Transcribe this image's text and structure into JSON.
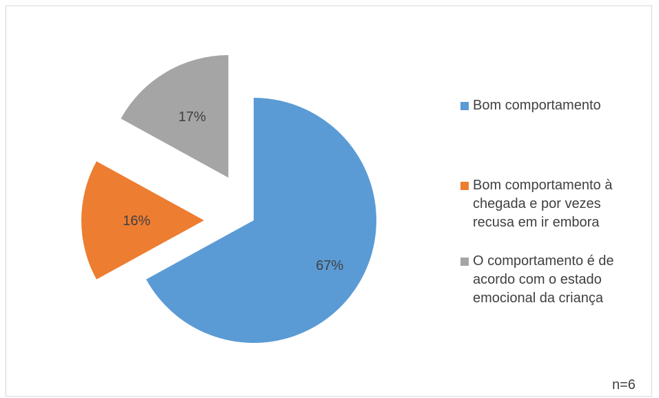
{
  "chart_data": {
    "type": "pie",
    "exploded": true,
    "title": "",
    "legend_position": "right",
    "slices": [
      {
        "label": "Bom comportamento",
        "value": 67,
        "display": "67%",
        "color": "#5b9bd5"
      },
      {
        "label": "Bom comportamento à chegada e por vezes recusa em ir embora",
        "value": 16,
        "display": "16%",
        "color": "#ed7d31"
      },
      {
        "label": "O comportamento é de acordo com o estado emocional da criança",
        "value": 17,
        "display": "17%",
        "color": "#a5a5a5"
      }
    ],
    "legend_lines": [
      "Bom comportamento",
      "Bom comportamento à\nchegada e por vezes\nrecusa em ir embora",
      "O comportamento é de\nacordo com o estado\nemocional da criança"
    ]
  },
  "note": "n=6"
}
